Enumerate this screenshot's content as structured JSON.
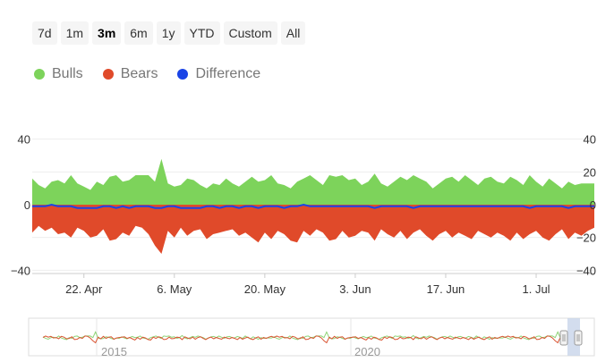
{
  "range_selector": {
    "buttons": [
      {
        "label": "7d",
        "active": false
      },
      {
        "label": "1m",
        "active": false
      },
      {
        "label": "3m",
        "active": true
      },
      {
        "label": "6m",
        "active": false
      },
      {
        "label": "1y",
        "active": false
      },
      {
        "label": "YTD",
        "active": false
      },
      {
        "label": "Custom",
        "active": false
      },
      {
        "label": "All",
        "active": false
      }
    ]
  },
  "chart_data": {
    "type": "area",
    "legend_position": "top-left",
    "grid": true,
    "x_tick_labels": [
      "22. Apr",
      "6. May",
      "20. May",
      "3. Jun",
      "17. Jun",
      "1. Jul"
    ],
    "x_ticks": [
      8,
      22,
      36,
      50,
      64,
      78
    ],
    "y_left": {
      "ticks": [
        40,
        0,
        -40
      ],
      "tick_labels": [
        "40",
        "0",
        "−40"
      ],
      "range": [
        -42,
        42
      ]
    },
    "y_right": {
      "ticks": [
        40,
        20,
        0,
        -20,
        -40
      ],
      "tick_labels": [
        "40",
        "20",
        "0",
        "−20",
        "−40"
      ],
      "range": [
        -42,
        42
      ]
    },
    "series": [
      {
        "name": "Bulls",
        "color": "#7dd35b",
        "values": [
          16,
          12,
          10,
          14,
          15,
          13,
          18,
          13,
          11,
          9,
          14,
          12,
          17,
          18,
          14,
          15,
          18,
          18,
          18,
          14,
          28,
          13,
          11,
          12,
          16,
          15,
          12,
          10,
          13,
          12,
          16,
          13,
          11,
          14,
          17,
          14,
          15,
          18,
          13,
          12,
          10,
          14,
          16,
          18,
          15,
          12,
          18,
          17,
          18,
          15,
          16,
          12,
          14,
          19,
          13,
          11,
          14,
          17,
          15,
          18,
          16,
          14,
          10,
          13,
          16,
          17,
          14,
          18,
          15,
          12,
          16,
          17,
          14,
          13,
          17,
          15,
          12,
          18,
          14,
          11,
          16,
          13,
          10,
          14,
          12,
          13,
          13,
          13
        ]
      },
      {
        "name": "Bears",
        "color": "#e04a2a",
        "values": [
          -17,
          -13,
          -16,
          -14,
          -18,
          -17,
          -20,
          -14,
          -16,
          -20,
          -19,
          -15,
          -22,
          -21,
          -17,
          -19,
          -13,
          -14,
          -18,
          -25,
          -30,
          -16,
          -20,
          -14,
          -19,
          -16,
          -15,
          -21,
          -18,
          -17,
          -16,
          -15,
          -19,
          -17,
          -20,
          -23,
          -17,
          -21,
          -16,
          -18,
          -22,
          -23,
          -16,
          -19,
          -15,
          -17,
          -22,
          -21,
          -16,
          -20,
          -19,
          -16,
          -17,
          -22,
          -15,
          -18,
          -20,
          -16,
          -21,
          -17,
          -15,
          -19,
          -22,
          -18,
          -16,
          -20,
          -17,
          -19,
          -21,
          -16,
          -18,
          -20,
          -17,
          -19,
          -22,
          -17,
          -21,
          -18,
          -16,
          -20,
          -22,
          -18,
          -15,
          -21,
          -17,
          -19,
          -16,
          -14
        ]
      },
      {
        "name": "Difference",
        "color": "#1a44e6",
        "values": [
          -1,
          -1,
          -1,
          0,
          -1,
          -1,
          -1,
          -2,
          -2,
          -2,
          -2,
          -1,
          -1,
          -2,
          -1,
          -2,
          -1,
          -1,
          -1,
          -2,
          -2,
          -1,
          -1,
          -2,
          -2,
          -2,
          -2,
          -1,
          -1,
          -2,
          -1,
          -1,
          -2,
          -1,
          -1,
          -2,
          -1,
          -1,
          -1,
          -2,
          -1,
          -1,
          0,
          -1,
          -1,
          -1,
          -1,
          -1,
          -1,
          -1,
          -1,
          -1,
          -1,
          -2,
          -1,
          -1,
          -1,
          -1,
          -1,
          -2,
          -1,
          -1,
          -1,
          -1,
          -1,
          -1,
          -1,
          -1,
          -1,
          -1,
          -1,
          -1,
          -1,
          -1,
          -1,
          -1,
          -1,
          -2,
          -1,
          -1,
          -1,
          -1,
          -1,
          -2,
          -1,
          -1,
          -1,
          -1
        ]
      }
    ]
  },
  "navigator": {
    "x_tick_labels": [
      "2015",
      "2020"
    ]
  }
}
